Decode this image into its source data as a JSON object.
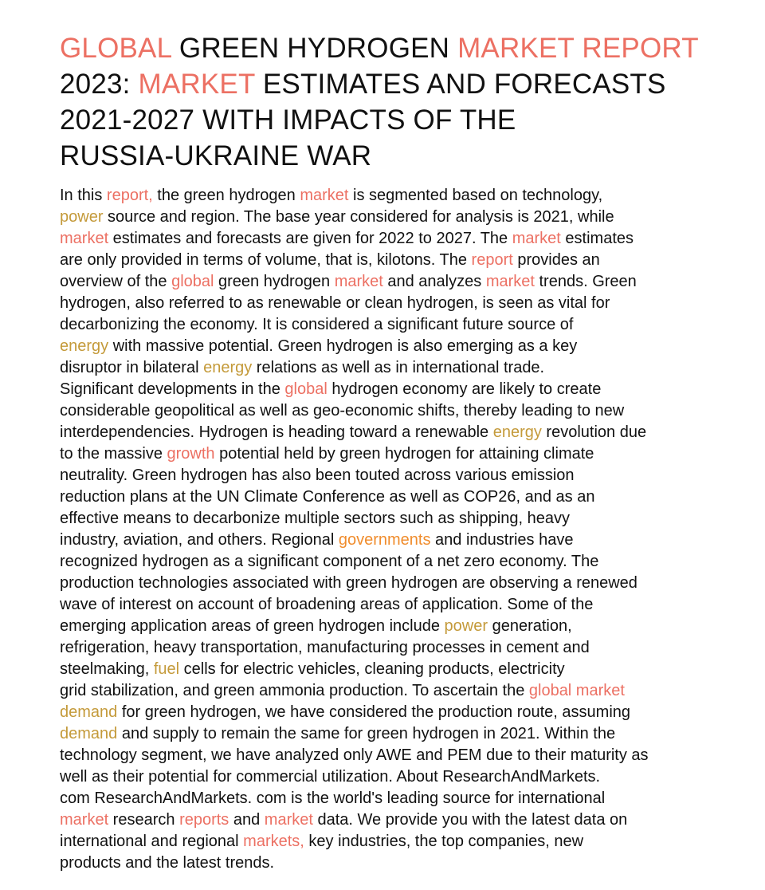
{
  "colors": {
    "text": "#111111",
    "highlight_red": "#ec7063",
    "highlight_gold": "#c49a3a",
    "highlight_orange": "#f08c2c",
    "background": "#ffffff"
  },
  "title": {
    "lines": [
      [
        {
          "text": "GLOBAL",
          "hl": 1
        },
        {
          "text": " GREEN HYDROGEN ",
          "hl": 0
        },
        {
          "text": "MARKET REPORT",
          "hl": 1
        }
      ],
      [
        {
          "text": "2023: ",
          "hl": 0
        },
        {
          "text": "MARKET",
          "hl": 1
        },
        {
          "text": " ESTIMATES AND FORECASTS",
          "hl": 0
        }
      ],
      [
        {
          "text": "2021-2027 WITH IMPACTS OF THE",
          "hl": 0
        }
      ],
      [
        {
          "text": "RUSSIA-UKRAINE WAR",
          "hl": 0
        }
      ]
    ]
  },
  "body": {
    "lines": [
      [
        {
          "text": "In this ",
          "hl": 0
        },
        {
          "text": "report,",
          "hl": 1
        },
        {
          "text": " the green hydrogen ",
          "hl": 0
        },
        {
          "text": "market",
          "hl": 1
        },
        {
          "text": " is segmented based on technology,",
          "hl": 0
        }
      ],
      [
        {
          "text": "power",
          "hl": 2
        },
        {
          "text": " source and region. The base year considered for analysis is 2021, while",
          "hl": 0
        }
      ],
      [
        {
          "text": "market",
          "hl": 1
        },
        {
          "text": " estimates and forecasts are given for 2022 to 2027. The ",
          "hl": 0
        },
        {
          "text": "market",
          "hl": 1
        },
        {
          "text": " estimates",
          "hl": 0
        }
      ],
      [
        {
          "text": "are only provided in terms of volume, that is, kilotons. The ",
          "hl": 0
        },
        {
          "text": "report",
          "hl": 1
        },
        {
          "text": " provides an",
          "hl": 0
        }
      ],
      [
        {
          "text": "overview of the ",
          "hl": 0
        },
        {
          "text": "global",
          "hl": 1
        },
        {
          "text": " green hydrogen ",
          "hl": 0
        },
        {
          "text": "market",
          "hl": 1
        },
        {
          "text": " and analyzes ",
          "hl": 0
        },
        {
          "text": "market",
          "hl": 1
        },
        {
          "text": " trends. Green",
          "hl": 0
        }
      ],
      [
        {
          "text": "hydrogen, also referred to as renewable or clean hydrogen, is seen as vital for",
          "hl": 0
        }
      ],
      [
        {
          "text": "decarbonizing the economy. It is considered a significant future source of",
          "hl": 0
        }
      ],
      [
        {
          "text": "energy",
          "hl": 2
        },
        {
          "text": " with massive potential. Green hydrogen is also emerging as a key",
          "hl": 0
        }
      ],
      [
        {
          "text": "disruptor in bilateral ",
          "hl": 0
        },
        {
          "text": "energy",
          "hl": 2
        },
        {
          "text": " relations as well as in international trade.",
          "hl": 0
        }
      ],
      [
        {
          "text": "Significant developments in the ",
          "hl": 0
        },
        {
          "text": "global",
          "hl": 1
        },
        {
          "text": " hydrogen economy are likely to create",
          "hl": 0
        }
      ],
      [
        {
          "text": "considerable geopolitical as well as geo-economic shifts, thereby leading to new",
          "hl": 0
        }
      ],
      [
        {
          "text": "interdependencies. Hydrogen is heading toward a renewable ",
          "hl": 0
        },
        {
          "text": "energy",
          "hl": 2
        },
        {
          "text": " revolution due",
          "hl": 0
        }
      ],
      [
        {
          "text": "to the massive ",
          "hl": 0
        },
        {
          "text": "growth",
          "hl": 1
        },
        {
          "text": " potential held by green hydrogen for attaining climate",
          "hl": 0
        }
      ],
      [
        {
          "text": "neutrality. Green hydrogen has also been touted across various emission",
          "hl": 0
        }
      ],
      [
        {
          "text": "reduction plans at the UN Climate Conference as well as COP26, and as an",
          "hl": 0
        }
      ],
      [
        {
          "text": "effective means to decarbonize multiple sectors such as shipping, heavy",
          "hl": 0
        }
      ],
      [
        {
          "text": "industry, aviation, and others. Regional ",
          "hl": 0
        },
        {
          "text": "governments",
          "hl": 3
        },
        {
          "text": " and industries have",
          "hl": 0
        }
      ],
      [
        {
          "text": "recognized hydrogen as a significant component of a net zero economy. The",
          "hl": 0
        }
      ],
      [
        {
          "text": "production technologies associated with green hydrogen are observing a renewed",
          "hl": 0
        }
      ],
      [
        {
          "text": "wave of interest on account of broadening areas of application. Some of the",
          "hl": 0
        }
      ],
      [
        {
          "text": "emerging application areas of green hydrogen include ",
          "hl": 0
        },
        {
          "text": "power",
          "hl": 2
        },
        {
          "text": " generation,",
          "hl": 0
        }
      ],
      [
        {
          "text": "refrigeration, heavy transportation, manufacturing processes in cement and",
          "hl": 0
        }
      ],
      [
        {
          "text": "steelmaking, ",
          "hl": 0
        },
        {
          "text": "fuel",
          "hl": 2
        },
        {
          "text": " cells for electric vehicles, cleaning products, electricity",
          "hl": 0
        }
      ],
      [
        {
          "text": "grid stabilization, and green ammonia production. To ascertain the ",
          "hl": 0
        },
        {
          "text": "global market",
          "hl": 1
        }
      ],
      [
        {
          "text": "demand",
          "hl": 2
        },
        {
          "text": " for green hydrogen, we have considered the production route, assuming",
          "hl": 0
        }
      ],
      [
        {
          "text": "demand",
          "hl": 2
        },
        {
          "text": " and supply to remain the same for green hydrogen in 2021. Within the",
          "hl": 0
        }
      ],
      [
        {
          "text": "technology segment, we have analyzed only AWE and PEM due to their maturity as",
          "hl": 0
        }
      ],
      [
        {
          "text": "well as their potential for commercial utilization. About ResearchAndMarkets.",
          "hl": 0
        }
      ],
      [
        {
          "text": "com ResearchAndMarkets. com is the world's leading source for international",
          "hl": 0
        }
      ],
      [
        {
          "text": "market",
          "hl": 1
        },
        {
          "text": " research ",
          "hl": 0
        },
        {
          "text": "reports",
          "hl": 1
        },
        {
          "text": " and ",
          "hl": 0
        },
        {
          "text": "market",
          "hl": 1
        },
        {
          "text": " data. We provide you with the latest data on",
          "hl": 0
        }
      ],
      [
        {
          "text": "international and regional ",
          "hl": 0
        },
        {
          "text": "markets,",
          "hl": 1
        },
        {
          "text": " key industries, the top companies, new",
          "hl": 0
        }
      ],
      [
        {
          "text": "products and the latest trends.",
          "hl": 0
        }
      ]
    ]
  }
}
